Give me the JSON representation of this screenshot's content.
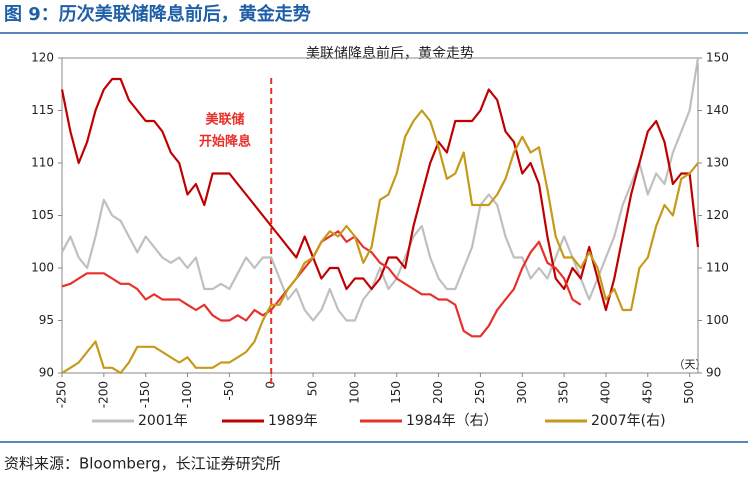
{
  "header": {
    "title": "图 9：历次美联储降息前后，黄金走势"
  },
  "source": "资料来源：Bloomberg，长江证券研究所",
  "chart_data": {
    "type": "line",
    "title": "美联储降息前后，黄金走势",
    "annotation": [
      "美联储",
      "开始降息"
    ],
    "x_label": "（天）",
    "reference_x": 0,
    "x": [
      -250,
      -240,
      -230,
      -220,
      -210,
      -200,
      -190,
      -180,
      -170,
      -160,
      -150,
      -140,
      -130,
      -120,
      -110,
      -100,
      -90,
      -80,
      -70,
      -60,
      -50,
      -40,
      -30,
      -20,
      -10,
      0,
      10,
      20,
      30,
      40,
      50,
      60,
      70,
      80,
      90,
      100,
      110,
      120,
      130,
      140,
      150,
      160,
      170,
      180,
      190,
      200,
      210,
      220,
      230,
      240,
      250,
      260,
      270,
      280,
      290,
      300,
      310,
      320,
      330,
      340,
      350,
      360,
      370,
      380,
      390,
      400,
      410,
      420,
      430,
      440,
      450,
      460,
      470,
      480,
      490,
      500,
      510
    ],
    "xlim": [
      -250,
      510
    ],
    "xticks": [
      -250,
      -200,
      -150,
      -100,
      -50,
      0,
      50,
      100,
      150,
      200,
      250,
      300,
      350,
      400,
      450,
      500
    ],
    "ylim": [
      90,
      120
    ],
    "yticks": [
      90,
      95,
      100,
      105,
      110,
      115,
      120
    ],
    "y2lim": [
      90,
      150
    ],
    "y2ticks": [
      90,
      100,
      110,
      120,
      130,
      140,
      150
    ],
    "series": [
      {
        "name": "2001年",
        "color": "#bfbfbf",
        "values": [
          101.5,
          103,
          101,
          100,
          103,
          106.5,
          105,
          104.5,
          103,
          101.5,
          103,
          102,
          101,
          100.5,
          101,
          100,
          101,
          98,
          98,
          98.5,
          98,
          99.5,
          101,
          100,
          101,
          101,
          99,
          97,
          98,
          96,
          95,
          96,
          98,
          96,
          95,
          95,
          97,
          98,
          100,
          98,
          99,
          101,
          103,
          104,
          101,
          99,
          98,
          98,
          100,
          102,
          106,
          107,
          106,
          103,
          101,
          101,
          99,
          100,
          99,
          101,
          103,
          101,
          99,
          97,
          99,
          101,
          103,
          106,
          108,
          110,
          107,
          109,
          108,
          111,
          113,
          115,
          120
        ]
      },
      {
        "name": "1989年",
        "color": "#c00000",
        "values": [
          117,
          113,
          110,
          112,
          115,
          117,
          118,
          118,
          116,
          115,
          114,
          114,
          113,
          111,
          110,
          107,
          108,
          106,
          109,
          109,
          109,
          108,
          107,
          106,
          105,
          104,
          103,
          102,
          101,
          103,
          101,
          99,
          100,
          100,
          98,
          99,
          99,
          98,
          99,
          101,
          101,
          100,
          104,
          107,
          110,
          112,
          111,
          114,
          114,
          114,
          115,
          117,
          116,
          113,
          112,
          109,
          110,
          108,
          103,
          99,
          98,
          100,
          99,
          102,
          99,
          96,
          99,
          103,
          107,
          110,
          113,
          114,
          112,
          108,
          109,
          109,
          102
        ]
      },
      {
        "name": "1984年（右）",
        "color": "#e8302a",
        "axis": "y2",
        "values": [
          106.5,
          107,
          108,
          109,
          109,
          109,
          108,
          107,
          107,
          106,
          104,
          105,
          104,
          104,
          104,
          103,
          102,
          103,
          101,
          100,
          100,
          101,
          100,
          102,
          101,
          102,
          104,
          106,
          108,
          110,
          112,
          115,
          116,
          117,
          115,
          116,
          114,
          113,
          111,
          110,
          108,
          107,
          106,
          105,
          105,
          104,
          104,
          103,
          98,
          97,
          97,
          99,
          102,
          104,
          106,
          110,
          113,
          115,
          111,
          110,
          108,
          104,
          103,
          null,
          null,
          null,
          null,
          null,
          null,
          null,
          null,
          null,
          null,
          null,
          null,
          null,
          null
        ]
      },
      {
        "name": "2007年(右)",
        "color": "#c59a1b",
        "axis": "y2",
        "values": [
          90,
          91,
          92,
          94,
          96,
          91,
          91,
          90,
          92,
          95,
          95,
          95,
          94,
          93,
          92,
          93,
          91,
          91,
          91,
          92,
          92,
          93,
          94,
          96,
          100,
          103,
          103,
          106,
          108,
          111,
          112,
          115,
          117,
          116,
          118,
          116,
          111,
          114,
          123,
          124,
          128,
          135,
          138,
          140,
          138,
          133,
          127,
          128,
          132,
          122,
          122,
          122,
          124,
          127,
          132,
          135,
          132,
          133,
          125,
          116,
          112,
          112,
          110,
          113,
          110,
          104,
          106,
          102,
          102,
          110,
          112,
          118,
          122,
          120,
          127,
          128,
          130
        ]
      }
    ]
  }
}
